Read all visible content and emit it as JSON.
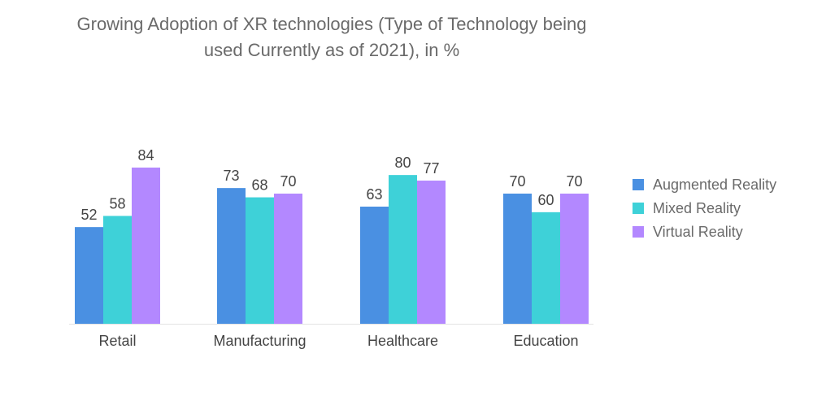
{
  "chart_data": {
    "type": "bar",
    "title_lines": [
      "Growing Adoption of XR technologies (Type of Technology being",
      "used Currently as of 2021), in %"
    ],
    "categories": [
      "Retail",
      "Manufacturing",
      "Healthcare",
      "Education"
    ],
    "series": [
      {
        "name": "Augmented Reality",
        "color": "#4a90e2",
        "values": [
          52,
          73,
          63,
          70
        ]
      },
      {
        "name": "Mixed Reality",
        "color": "#3ed1d8",
        "values": [
          58,
          68,
          80,
          60
        ]
      },
      {
        "name": "Virtual Reality",
        "color": "#b388ff",
        "values": [
          84,
          70,
          77,
          70
        ]
      }
    ],
    "xlabel": "",
    "ylabel": "",
    "ylim": [
      0,
      84
    ],
    "grid": false,
    "legend_position": "right"
  }
}
